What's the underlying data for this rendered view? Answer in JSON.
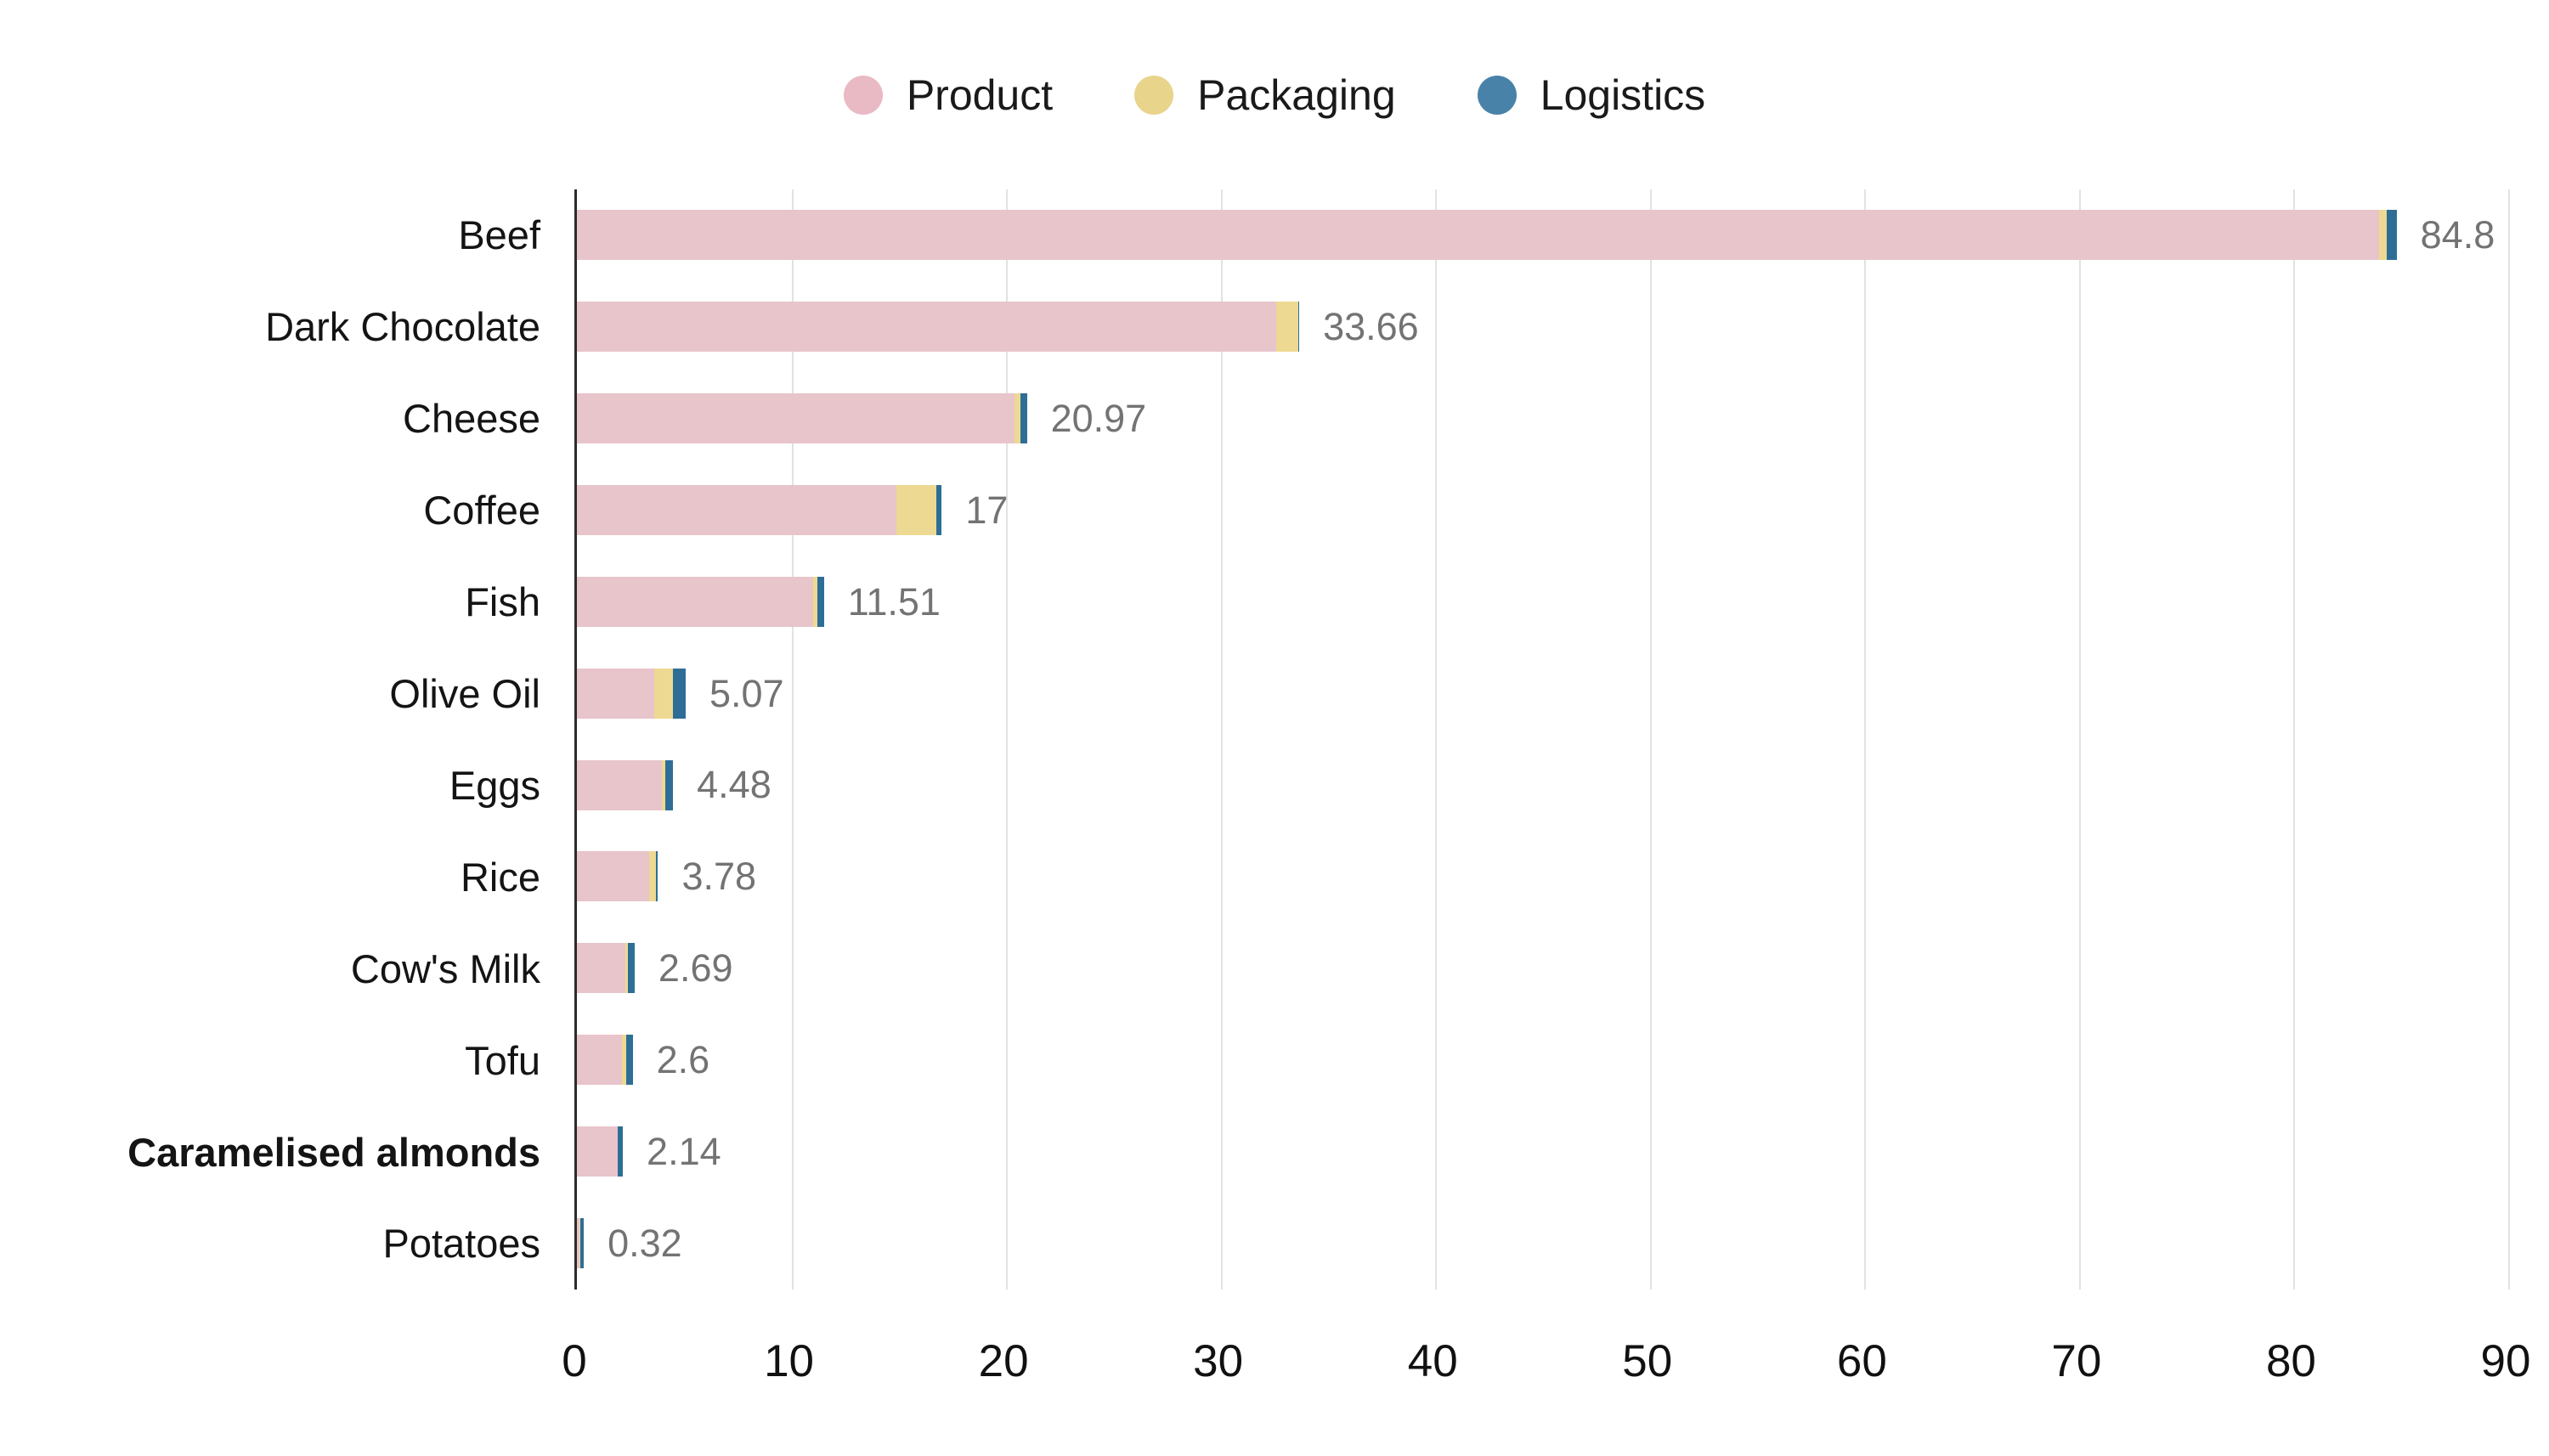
{
  "colors": {
    "legend_product": "#e9b9c4",
    "legend_packaging": "#e8d48a",
    "legend_logistics": "#4882a9",
    "bar_product": "#e8c4cb",
    "bar_packaging": "#eed992",
    "bar_logistics": "#2e6e96",
    "value_label": "#737373",
    "gridline": "#e2e2e2",
    "axis_line": "#2b2b2b"
  },
  "chart_data": {
    "type": "bar",
    "orientation": "horizontal",
    "stacked": true,
    "title": "",
    "xlabel": "",
    "ylabel": "",
    "xlim": [
      0,
      90
    ],
    "xticks": [
      0,
      10,
      20,
      30,
      40,
      50,
      60,
      70,
      80,
      90
    ],
    "grid": "vertical",
    "legend_position": "top-center",
    "categories": [
      "Beef",
      "Dark Chocolate",
      "Cheese",
      "Coffee",
      "Fish",
      "Olive Oil",
      "Eggs",
      "Rice",
      "Cow's Milk",
      "Tofu",
      "Caramelised almonds",
      "Potatoes"
    ],
    "bold_category": "Caramelised almonds",
    "series": [
      {
        "name": "Product",
        "values": [
          84.0,
          32.6,
          20.4,
          14.9,
          11.0,
          3.6,
          3.95,
          3.35,
          2.25,
          2.1,
          1.9,
          0.12
        ]
      },
      {
        "name": "Packaging",
        "values": [
          0.35,
          1.0,
          0.27,
          1.85,
          0.21,
          0.87,
          0.18,
          0.33,
          0.12,
          0.2,
          0.02,
          0.04
        ]
      },
      {
        "name": "Logistics",
        "values": [
          0.45,
          0.06,
          0.3,
          0.25,
          0.3,
          0.6,
          0.35,
          0.1,
          0.32,
          0.3,
          0.22,
          0.16
        ]
      }
    ],
    "totals_labels": [
      "84.8",
      "33.66",
      "20.97",
      "17",
      "11.51",
      "5.07",
      "4.48",
      "3.78",
      "2.69",
      "2.6",
      "2.14",
      "0.32"
    ]
  }
}
